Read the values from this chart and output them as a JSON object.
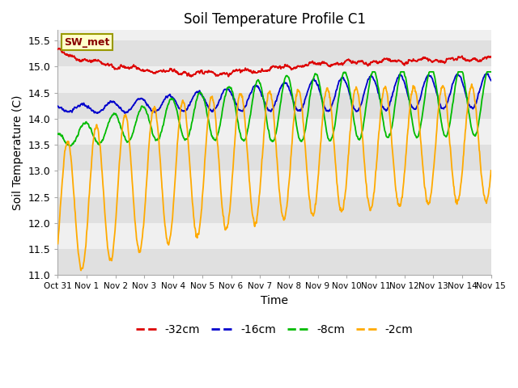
{
  "title": "Soil Temperature Profile C1",
  "xlabel": "Time",
  "ylabel": "Soil Temperature (C)",
  "ylim": [
    11.0,
    15.7
  ],
  "yticks": [
    11.0,
    11.5,
    12.0,
    12.5,
    13.0,
    13.5,
    14.0,
    14.5,
    15.0,
    15.5
  ],
  "bg_color": "#ffffff",
  "plot_bg_light": "#f0f0f0",
  "plot_bg_dark": "#e0e0e0",
  "legend_box_label": "SW_met",
  "legend_box_bg": "#ffffcc",
  "legend_box_edge": "#999900",
  "legend_box_text": "#880000",
  "colors": {
    "d32cm": "#dd0000",
    "d16cm": "#0000cc",
    "d8cm": "#00bb00",
    "d2cm": "#ffaa00"
  },
  "legend_labels": [
    "-32cm",
    "-16cm",
    "-8cm",
    "-2cm"
  ],
  "legend_colors": [
    "#dd0000",
    "#0000cc",
    "#00bb00",
    "#ffaa00"
  ],
  "xtick_labels": [
    "Oct 31",
    "Nov 1",
    "Nov 2",
    "Nov 3",
    "Nov 4",
    "Nov 5",
    "Nov 6",
    "Nov 7",
    "Nov 8",
    "Nov 9",
    "Nov 10",
    "Nov 11",
    "Nov 12",
    "Nov 13",
    "Nov 14",
    "Nov 15"
  ],
  "n_points": 1440,
  "days": 15
}
